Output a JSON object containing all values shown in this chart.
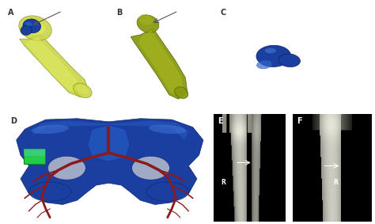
{
  "background_color": "#ffffff",
  "label_fontsize": 7,
  "label_color": "#333333",
  "panels": {
    "A": [
      0.01,
      0.5,
      0.3,
      0.48
    ],
    "B": [
      0.3,
      0.5,
      0.27,
      0.48
    ],
    "C": [
      0.57,
      0.5,
      0.42,
      0.48
    ],
    "D": [
      0.01,
      0.01,
      0.56,
      0.48
    ],
    "E": [
      0.57,
      0.01,
      0.19,
      0.48
    ],
    "F": [
      0.78,
      0.01,
      0.21,
      0.48
    ]
  },
  "bone_color_A": "#c8d44a",
  "bone_color_A_dark": "#8a9a10",
  "bone_color_A_light": "#e8f060",
  "bone_color_B": "#8a9a10",
  "bone_color_B_light": "#b8c820",
  "tumor_blue": "#1a3fa0",
  "tumor_blue_dark": "#0d2060",
  "tumor_blue_bright": "#3366cc",
  "pelvis_blue": "#1a3fa0",
  "pelvis_blue_dark": "#0d2870",
  "vessel_red": "#8b1a1a",
  "vessel_red_dark": "#5a0808",
  "green_graft": "#22cc44",
  "xray_bg": "#0a0a0a",
  "xray_bone": "#c8c8b0",
  "xray_bone2": "#e0e0cc"
}
